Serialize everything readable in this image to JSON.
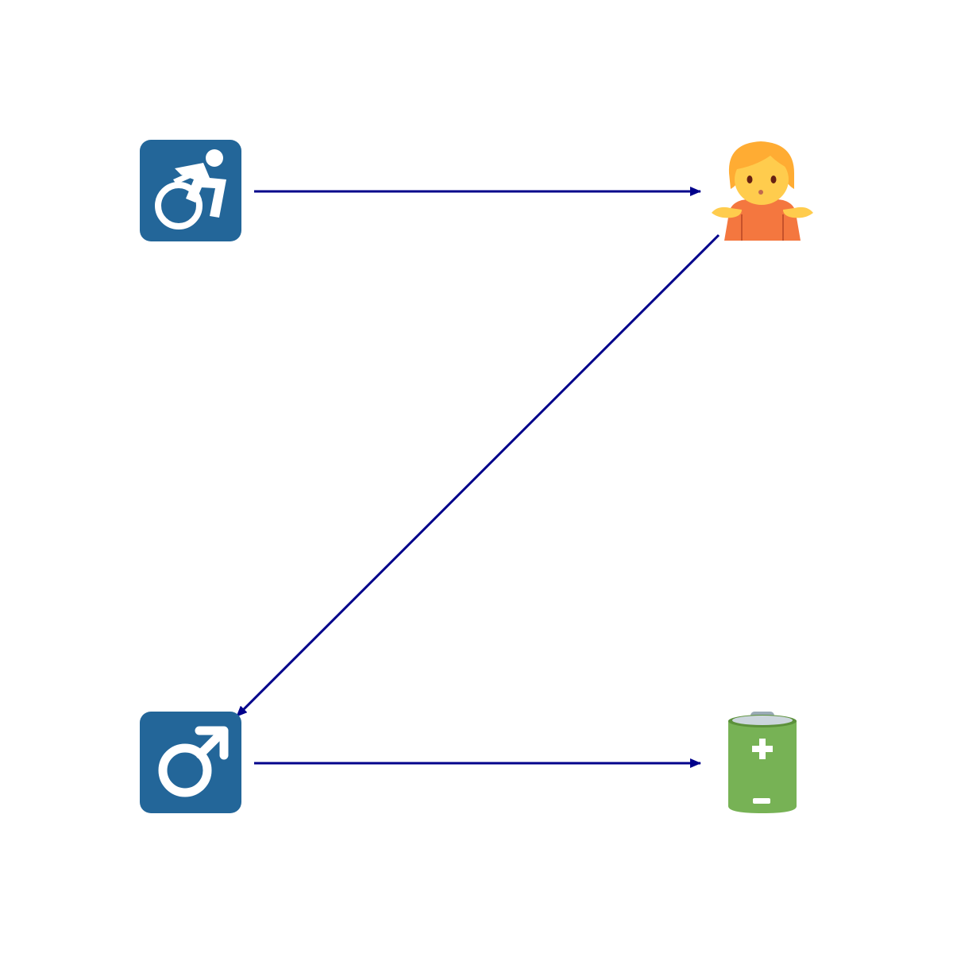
{
  "diagram": {
    "type": "flow",
    "nodes": [
      {
        "id": "n1",
        "icon": "motorized-wheelchair-icon"
      },
      {
        "id": "n2",
        "icon": "person-shrugging-icon"
      },
      {
        "id": "n3",
        "icon": "male-sign-icon"
      },
      {
        "id": "n4",
        "icon": "battery-icon"
      }
    ],
    "edges": [
      {
        "from": "n1",
        "to": "n2"
      },
      {
        "from": "n2",
        "to": "n3"
      },
      {
        "from": "n3",
        "to": "n4"
      }
    ],
    "colors": {
      "arrow": "#00008b",
      "icon_tile": "#236699",
      "skin": "#ffcc4d",
      "hair": "#ffac33",
      "shirt": "#f4773f",
      "battery_body": "#77b255",
      "battery_cap": "#ccd6dd"
    }
  }
}
